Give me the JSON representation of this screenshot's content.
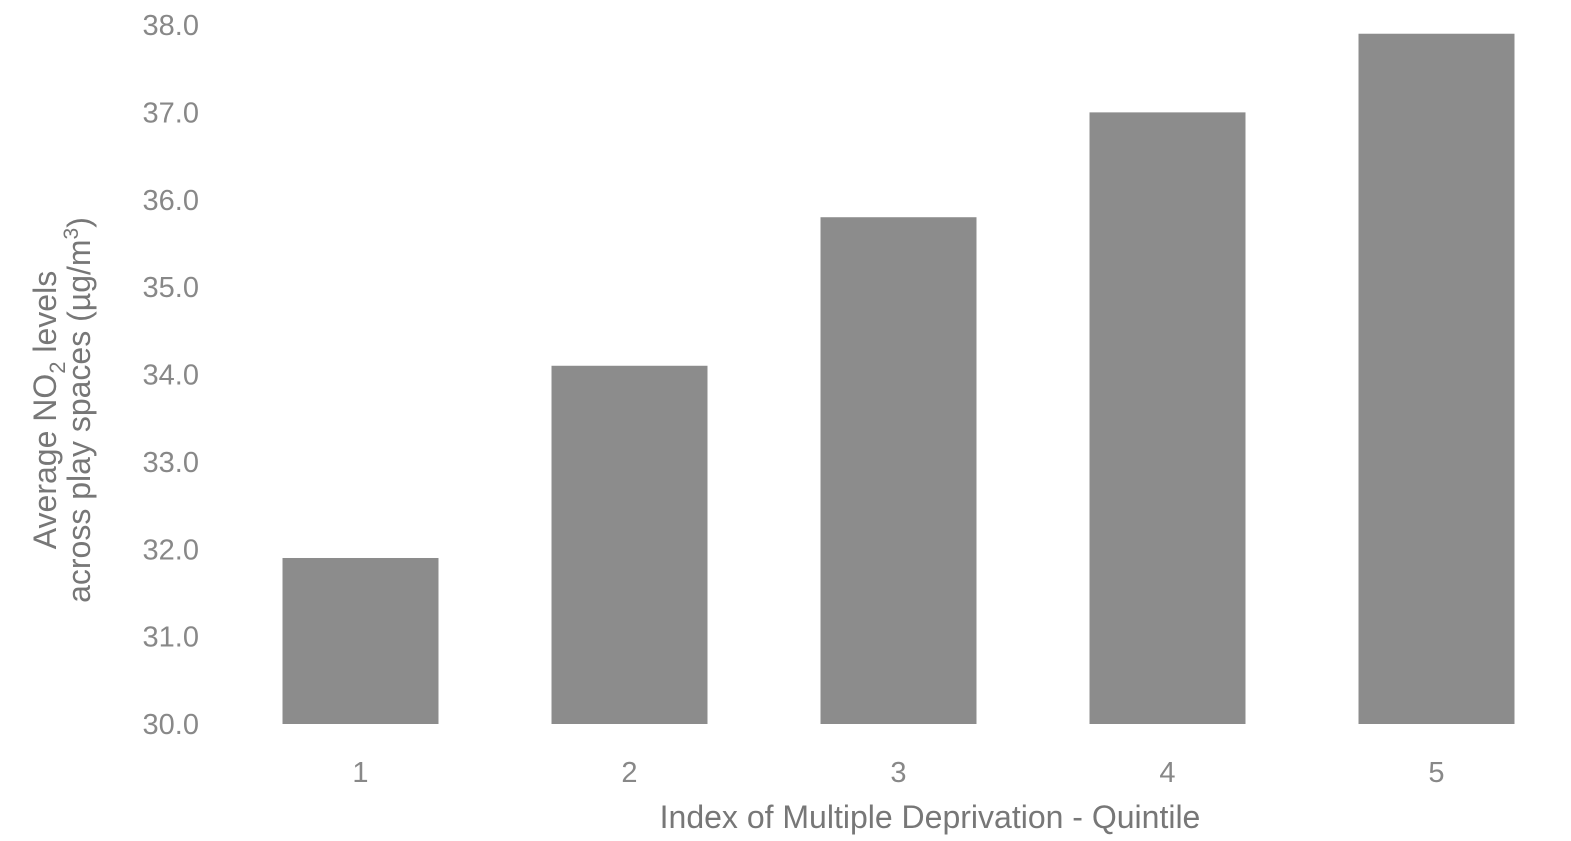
{
  "chart_data": {
    "type": "bar",
    "categories": [
      "1",
      "2",
      "3",
      "4",
      "5"
    ],
    "values": [
      31.9,
      34.1,
      35.8,
      37.0,
      37.9
    ],
    "ylim": [
      30.0,
      38.0
    ],
    "yticks": [
      "30.0",
      "31.0",
      "32.0",
      "33.0",
      "34.0",
      "35.0",
      "36.0",
      "37.0",
      "38.0"
    ],
    "xlabel": "Index of Multiple Deprivation - Quintile",
    "ylabel": {
      "line1_prefix": "Average NO",
      "line1_sub": "2",
      "line1_suffix": " levels",
      "line2_prefix": "across play spaces (µg/m",
      "line2_sup": "3",
      "line2_suffix": ")"
    },
    "grid": false,
    "bar_color": "#8c8c8c"
  }
}
